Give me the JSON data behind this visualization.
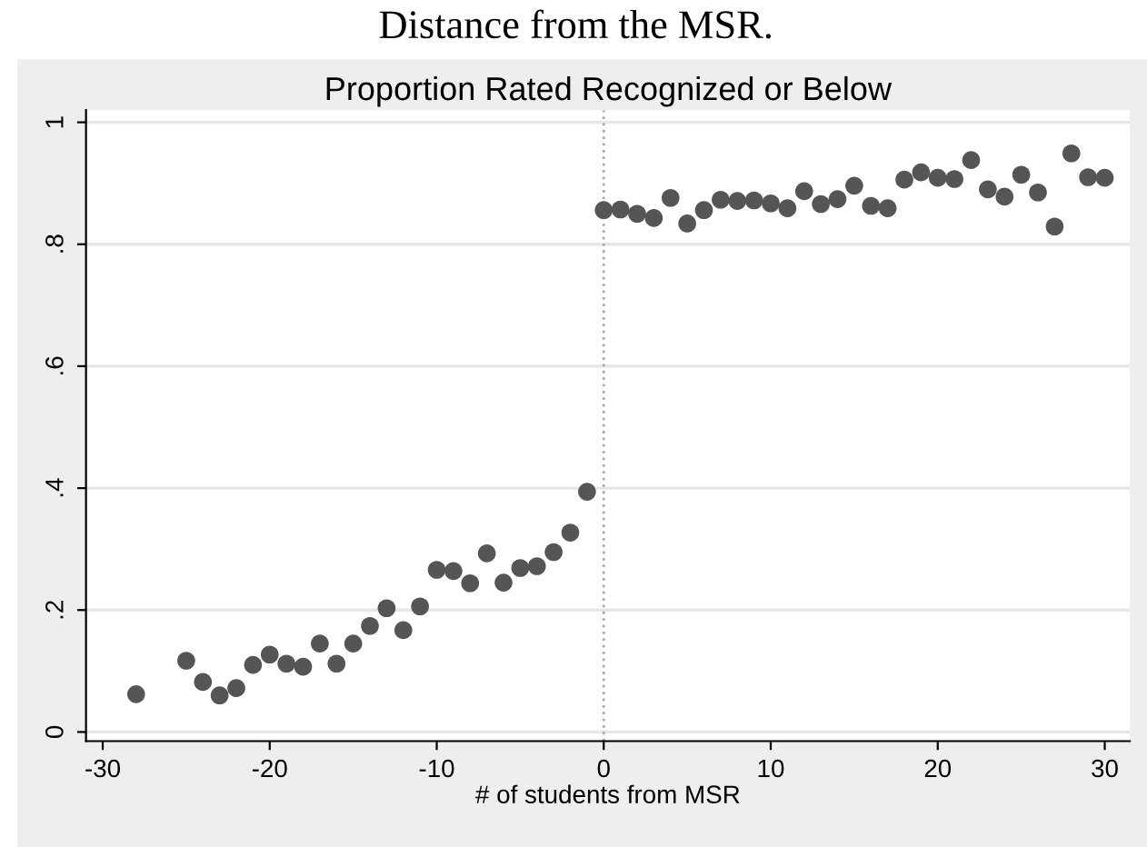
{
  "chart_data": {
    "type": "scatter",
    "title": "Proportion Rated Recognized or Below",
    "xlabel": "# of students from MSR",
    "annotations": [
      "Distance from the MSR."
    ],
    "x": [
      -28,
      -25,
      -24,
      -23,
      -22,
      -21,
      -20,
      -19,
      -18,
      -17,
      -16,
      -15,
      -14,
      -13,
      -12,
      -11,
      -10,
      -9,
      -8,
      -7,
      -6,
      -5,
      -4,
      -3,
      -2,
      -1,
      0,
      1,
      2,
      3,
      4,
      5,
      6,
      7,
      8,
      9,
      10,
      11,
      12,
      13,
      14,
      15,
      16,
      17,
      18,
      19,
      20,
      21,
      22,
      23,
      24,
      25,
      26,
      27,
      28,
      29,
      30
    ],
    "series": [
      {
        "color": "#555555",
        "values": [
          0.062,
          0.117,
          0.082,
          0.06,
          0.072,
          0.11,
          0.127,
          0.112,
          0.107,
          0.145,
          0.112,
          0.145,
          0.174,
          0.203,
          0.167,
          0.206,
          0.266,
          0.264,
          0.244,
          0.293,
          0.245,
          0.269,
          0.272,
          0.295,
          0.327,
          0.394,
          0.856,
          0.857,
          0.85,
          0.843,
          0.876,
          0.834,
          0.856,
          0.873,
          0.871,
          0.872,
          0.867,
          0.859,
          0.887,
          0.866,
          0.874,
          0.896,
          0.863,
          0.859,
          0.906,
          0.918,
          0.909,
          0.907,
          0.938,
          0.89,
          0.878,
          0.914,
          0.885,
          0.829,
          0.949,
          0.91,
          0.909
        ]
      }
    ],
    "xlim": [
      -31,
      31.5
    ],
    "ylim": [
      -0.015,
      1.02
    ],
    "xticks": [
      -30,
      -20,
      -10,
      0,
      10,
      20,
      30
    ],
    "yticks": [
      {
        "value": 0,
        "label": "0"
      },
      {
        "value": 0.2,
        "label": ".2"
      },
      {
        "value": 0.4,
        "label": ".4"
      },
      {
        "value": 0.6,
        "label": ".6"
      },
      {
        "value": 0.8,
        "label": ".8"
      },
      {
        "value": 1,
        "label": "1"
      }
    ],
    "grid": "y",
    "marker": "circle",
    "ref_lines": [
      {
        "axis": "x",
        "value": 0,
        "color": "#aaaaaa",
        "line_style": "dotted"
      }
    ]
  }
}
